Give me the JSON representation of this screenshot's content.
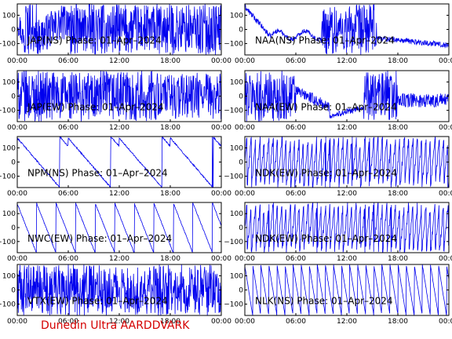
{
  "footer": {
    "text": "Dunedin Ultra AARDDVARK",
    "color": "#d40000"
  },
  "trace_color": "#0000ee",
  "chart_data": [
    {
      "type": "line",
      "title": "JAP(NS) Phase: 01–Apr–2024",
      "xticks": [
        "00:00",
        "06:00",
        "12:00",
        "18:00",
        "00:00"
      ],
      "yticks": [
        "100",
        "0",
        "−100"
      ],
      "ylim": [
        -180,
        180
      ],
      "xlim_hours": [
        0,
        24
      ],
      "grid": false,
      "pattern": "chaotic-then-saturated"
    },
    {
      "type": "line",
      "title": "NAA(NS) Phase: 01–Apr–2024",
      "xticks": [
        "00:00",
        "06:00",
        "12:00",
        "18:00",
        "00:00"
      ],
      "yticks": [
        "100",
        "0",
        "−100"
      ],
      "ylim": [
        -180,
        180
      ],
      "xlim_hours": [
        0,
        24
      ],
      "grid": false,
      "pattern": "drift-then-noisy-day"
    },
    {
      "type": "line",
      "title": "JAP(EW) Phase: 01–Apr–2024",
      "xticks": [
        "00:00",
        "06:00",
        "12:00",
        "18:00",
        "00:00"
      ],
      "yticks": [
        "100",
        "0",
        "−100"
      ],
      "ylim": [
        -180,
        180
      ],
      "xlim_hours": [
        0,
        24
      ],
      "grid": false,
      "pattern": "saturated-block"
    },
    {
      "type": "line",
      "title": "NAA(EW) Phase: 01–Apr–2024",
      "xticks": [
        "00:00",
        "06:00",
        "12:00",
        "18:00",
        "00:00"
      ],
      "yticks": [
        "100",
        "0",
        "−100"
      ],
      "ylim": [
        -180,
        180
      ],
      "xlim_hours": [
        0,
        24
      ],
      "grid": false,
      "pattern": "noisy-with-daytime-dip"
    },
    {
      "type": "line",
      "title": "NPM(NS) Phase: 01–Apr–2024",
      "xticks": [
        "00:00",
        "06:00",
        "12:00",
        "18:00",
        "00:00"
      ],
      "yticks": [
        "100",
        "0",
        "−100"
      ],
      "ylim": [
        -180,
        180
      ],
      "xlim_hours": [
        0,
        24
      ],
      "grid": false,
      "pattern": "slow-drift"
    },
    {
      "type": "line",
      "title": "NDK(EW) Phase: 01–Apr–2024",
      "xticks": [
        "00:00",
        "06:00",
        "12:00",
        "18:00",
        "00:00"
      ],
      "yticks": [
        "100",
        "0",
        "−100"
      ],
      "ylim": [
        -180,
        180
      ],
      "xlim_hours": [
        0,
        24
      ],
      "grid": false,
      "pattern": "dense-wrapping"
    },
    {
      "type": "line",
      "title": "NWC(EW) Phase: 01–Apr–2024",
      "xticks": [
        "00:00",
        "06:00",
        "12:00",
        "18:00",
        "00:00"
      ],
      "yticks": [
        "100",
        "0",
        "−100"
      ],
      "ylim": [
        -180,
        180
      ],
      "xlim_hours": [
        0,
        24
      ],
      "grid": false,
      "pattern": "sawtooth-slow"
    },
    {
      "type": "line",
      "title": "NDK(EW) Phase: 01–Apr–2024",
      "xticks": [
        "00:00",
        "06:00",
        "12:00",
        "18:00",
        "00:00"
      ],
      "yticks": [
        "100",
        "0",
        "−100"
      ],
      "ylim": [
        -180,
        180
      ],
      "xlim_hours": [
        0,
        24
      ],
      "grid": false,
      "pattern": "dense-wrapping"
    },
    {
      "type": "line",
      "title": "VTX(EW) Phase: 01–Apr–2024",
      "xticks": [
        "00:00",
        "06:00",
        "12:00",
        "18:00",
        "00:00"
      ],
      "yticks": [
        "100",
        "0",
        "−100"
      ],
      "ylim": [
        -180,
        180
      ],
      "xlim_hours": [
        0,
        24
      ],
      "grid": false,
      "pattern": "very-dense"
    },
    {
      "type": "line",
      "title": "NLK(NS) Phase: 01–Apr–2024",
      "xticks": [
        "00:00",
        "06:00",
        "12:00",
        "18:00",
        "00:00"
      ],
      "yticks": [
        "100",
        "0",
        "−100"
      ],
      "ylim": [
        -180,
        180
      ],
      "xlim_hours": [
        0,
        24
      ],
      "grid": false,
      "pattern": "sawtooth-fast"
    }
  ]
}
